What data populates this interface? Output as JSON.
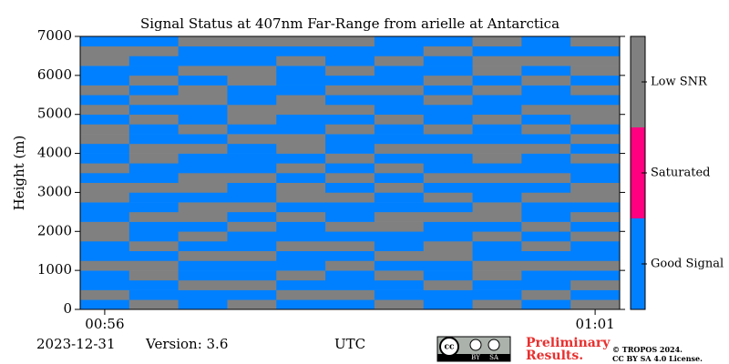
{
  "chart_data": {
    "type": "heatmap",
    "title": "Signal Status at 407nm Far-Range from arielle at Antarctica",
    "ylabel": "Height (m)",
    "xlabel": "UTC",
    "categories": [
      "00:56",
      null,
      null,
      null,
      null,
      null,
      null,
      null,
      null,
      null,
      "01:01"
    ],
    "ylim": [
      0,
      7000
    ],
    "yticks": [
      0,
      1000,
      2000,
      3000,
      4000,
      5000,
      6000,
      7000
    ],
    "y_bins": [
      0,
      250,
      500,
      750,
      1000,
      1250,
      1500,
      1750,
      2000,
      2250,
      2500,
      2750,
      3000,
      3250,
      3500,
      3750,
      4000,
      4250,
      4500,
      4750,
      5000,
      5250,
      5500,
      5750,
      6000,
      6250,
      6500,
      6750,
      7000
    ],
    "z": [
      [
        0,
        2,
        0,
        0,
        2,
        0,
        0,
        2,
        2,
        0,
        0,
        2,
        2,
        0,
        2,
        0,
        0,
        2,
        2,
        0,
        2,
        0,
        2,
        0,
        0,
        2,
        2,
        0
      ],
      [
        2,
        0,
        0,
        2,
        2,
        0,
        2,
        0,
        0,
        2,
        0,
        0,
        2,
        0,
        0,
        2,
        2,
        0,
        0,
        2,
        0,
        2,
        0,
        2,
        0,
        0,
        2,
        0
      ],
      [
        0,
        0,
        2,
        0,
        0,
        2,
        0,
        2,
        0,
        2,
        2,
        0,
        2,
        2,
        0,
        0,
        2,
        0,
        2,
        0,
        0,
        2,
        2,
        0,
        2,
        0,
        0,
        2
      ],
      [
        2,
        0,
        2,
        0,
        0,
        2,
        0,
        0,
        2,
        0,
        2,
        0,
        0,
        2,
        0,
        0,
        0,
        2,
        0,
        2,
        2,
        0,
        0,
        2,
        2,
        0,
        0,
        2
      ],
      [
        0,
        2,
        0,
        2,
        0,
        0,
        2,
        0,
        0,
        2,
        0,
        2,
        2,
        0,
        2,
        0,
        2,
        2,
        0,
        0,
        2,
        2,
        0,
        0,
        0,
        2,
        0,
        2
      ],
      [
        0,
        2,
        0,
        0,
        2,
        0,
        2,
        0,
        2,
        0,
        0,
        2,
        0,
        2,
        0,
        2,
        0,
        0,
        2,
        0,
        2,
        0,
        2,
        0,
        2,
        0,
        0,
        2
      ],
      [
        2,
        0,
        0,
        2,
        0,
        2,
        0,
        0,
        2,
        2,
        0,
        0,
        2,
        0,
        2,
        0,
        2,
        0,
        0,
        2,
        0,
        0,
        2,
        0,
        0,
        2,
        0,
        0
      ],
      [
        0,
        0,
        2,
        0,
        0,
        2,
        2,
        0,
        0,
        2,
        0,
        2,
        0,
        2,
        0,
        0,
        2,
        0,
        2,
        0,
        0,
        2,
        0,
        2,
        0,
        0,
        2,
        0
      ],
      [
        2,
        0,
        0,
        2,
        2,
        0,
        0,
        2,
        0,
        2,
        2,
        0,
        0,
        2,
        0,
        2,
        2,
        0,
        0,
        2,
        0,
        0,
        2,
        0,
        2,
        2,
        0,
        2
      ],
      [
        0,
        2,
        0,
        0,
        2,
        0,
        2,
        0,
        2,
        0,
        0,
        2,
        0,
        2,
        0,
        0,
        2,
        0,
        2,
        0,
        2,
        0,
        0,
        2,
        0,
        2,
        0,
        0
      ],
      [
        2,
        0,
        2,
        0,
        2,
        0,
        0,
        2,
        0,
        2,
        0,
        2,
        2,
        0,
        0,
        2,
        0,
        2,
        0,
        2,
        2,
        0,
        2,
        0,
        2,
        2,
        0,
        2
      ]
    ],
    "colorbar": [
      {
        "label": "Good Signal",
        "color": "#0080ff"
      },
      {
        "label": "Saturated",
        "color": "#ff0080"
      },
      {
        "label": "Low SNR",
        "color": "#808080"
      }
    ]
  },
  "footer": {
    "date": "2023-12-31",
    "version": "Version: 3.6",
    "badge": [
      "cc",
      "BY",
      "SA"
    ],
    "notice": [
      "Preliminary",
      "Results."
    ],
    "copyright": [
      "© TROPOS 2024.",
      "CC BY SA 4.0 License."
    ]
  }
}
